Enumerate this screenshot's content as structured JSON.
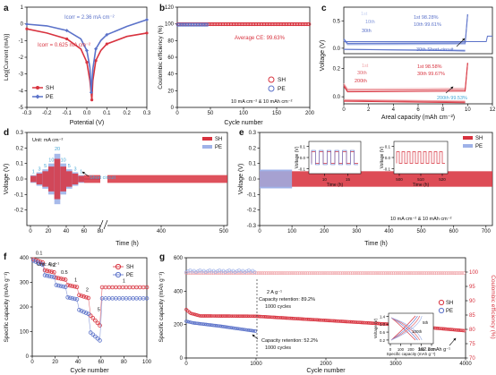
{
  "colors": {
    "sh": "#d8333f",
    "sh_light": "#ee9a9f",
    "pe": "#5b72c9",
    "pe_light": "#9fb2e8",
    "cyan": "#45a7d6",
    "axis": "#111111"
  },
  "chart_data": [
    {
      "panel": "a",
      "type": "line",
      "xlabel": "Potential (V)",
      "ylabel": "Log[Current (mA)]",
      "xlim": [
        -0.3,
        0.3
      ],
      "ylim": [
        -5,
        1
      ],
      "xticks": [
        "-0.3",
        "-0.2",
        "-0.1",
        "0.0",
        "0.1",
        "0.2",
        "0.3"
      ],
      "yticks": [
        "-5",
        "-4",
        "-3",
        "-2",
        "-1",
        "0",
        "1"
      ],
      "annotations": [
        "Icorr = 2.36 mA cm⁻²",
        "Icorr = 0.625 mA cm⁻²"
      ],
      "series": [
        {
          "name": "SH",
          "x": [
            -0.3,
            -0.2,
            -0.1,
            -0.03,
            0.0,
            0.015,
            0.025,
            0.03,
            0.045,
            0.07,
            0.1,
            0.2,
            0.3
          ],
          "y": [
            -0.3,
            -0.55,
            -0.9,
            -1.5,
            -2.3,
            -3.4,
            -4.55,
            -3.4,
            -2.2,
            -1.6,
            -1.2,
            -0.75,
            -0.55
          ]
        },
        {
          "name": "PE",
          "x": [
            -0.3,
            -0.2,
            -0.1,
            -0.03,
            0.0,
            0.015,
            0.022,
            0.03,
            0.045,
            0.07,
            0.1,
            0.2,
            0.3
          ],
          "y": [
            -0.02,
            -0.12,
            -0.4,
            -0.9,
            -1.6,
            -2.6,
            -4.1,
            -2.7,
            -1.5,
            -1.0,
            -0.65,
            -0.15,
            0.25
          ]
        }
      ]
    },
    {
      "panel": "b",
      "type": "scatter",
      "xlabel": "Cycle number",
      "ylabel": "Coulombic efficiency (%)",
      "xlim": [
        0,
        200
      ],
      "ylim": [
        0,
        120
      ],
      "xticks": [
        "0",
        "50",
        "100",
        "150",
        "200"
      ],
      "yticks": [
        "0",
        "20",
        "40",
        "60",
        "80",
        "100",
        "120"
      ],
      "annotations": [
        "Average CE: 99.63%",
        "10 mA cm⁻² & 10 mAh cm⁻²"
      ],
      "series": [
        {
          "name": "SH",
          "value": 99.6
        },
        {
          "name": "PE",
          "value": 99.0,
          "cycles_end": 45
        }
      ]
    },
    {
      "panel": "c",
      "type": "line",
      "xlabel": "Areal capacity (mAh cm⁻²)",
      "ylabel": "Voltage (V)",
      "xlim": [
        0,
        12
      ],
      "xticks": [
        "0",
        "2",
        "4",
        "6",
        "8",
        "10",
        "12"
      ],
      "yticks_top": [
        "0.0",
        "0.5"
      ],
      "yticks_bottom": [
        "0.0",
        "0.2"
      ],
      "annotations": [
        "1st",
        "10th",
        "30th",
        "1st 98.28%",
        "10th 99.61%",
        "30th Short-circuit",
        "1st 98.58%",
        "30th 99.67%",
        "200th 99.53%",
        "1st",
        "30th",
        "200th"
      ]
    },
    {
      "panel": "d",
      "type": "line",
      "xlabel": "Time (h)",
      "ylabel": "Voltage (V)",
      "ylim": [
        -0.3,
        0.3
      ],
      "yticks": [
        "-0.2",
        "-0.1",
        "0.0",
        "0.1",
        "0.2",
        "0.3"
      ],
      "xticks": [
        "0",
        "20",
        "40",
        "60",
        "80",
        "400",
        "500"
      ],
      "unit_label": "Unit: mA cm⁻²",
      "rate_labels": [
        "1",
        "3",
        "5",
        "10",
        "20",
        "10",
        "5",
        "3",
        "1"
      ],
      "annotations": [
        "Short circuit"
      ],
      "series": [
        {
          "name": "SH"
        },
        {
          "name": "PE"
        }
      ]
    },
    {
      "panel": "e",
      "type": "line",
      "xlabel": "Time (h)",
      "ylabel": "Voltage (V)",
      "xlim": [
        0,
        720
      ],
      "ylim": [
        -0.3,
        0.3
      ],
      "xticks": [
        "0",
        "100",
        "200",
        "300",
        "400",
        "500",
        "600",
        "700"
      ],
      "yticks": [
        "-0.3",
        "-0.2",
        "-0.1",
        "0.0",
        "0.1",
        "0.2",
        "0.3"
      ],
      "annotations": [
        "10 mA cm⁻² & 10 mAh cm⁻²"
      ],
      "inset1": {
        "xlabel": "Time (h)",
        "ylabel": "Voltage (V)",
        "xticks": [
          "10",
          "15"
        ],
        "yticks": [
          "-0.1",
          "0.0",
          "0.1"
        ]
      },
      "inset2": {
        "xlabel": "Time (h)",
        "ylabel": "Voltage (V)",
        "xticks": [
          "500",
          "510",
          "520"
        ],
        "yticks": [
          "-0.1",
          "0.0",
          "0.1"
        ]
      },
      "series": [
        {
          "name": "SH"
        },
        {
          "name": "PE"
        }
      ]
    },
    {
      "panel": "f",
      "type": "scatter",
      "xlabel": "Cycle number",
      "ylabel": "Specific capacity (mAh g⁻¹)",
      "xlim": [
        0,
        100
      ],
      "ylim": [
        0,
        400
      ],
      "xticks": [
        "0",
        "20",
        "40",
        "60",
        "80",
        "100"
      ],
      "yticks": [
        "0",
        "100",
        "200",
        "300",
        "400"
      ],
      "unit_label": "Unit: A g⁻¹",
      "rate_labels": [
        "0.1",
        "0.2",
        "0.5",
        "1",
        "2",
        "5",
        "1"
      ],
      "series": [
        {
          "name": "SH",
          "segments": [
            [
              0,
              10,
              395,
              380
            ],
            [
              10,
              20,
              350,
              340
            ],
            [
              20,
              30,
              320,
              310
            ],
            [
              30,
              40,
              290,
              280
            ],
            [
              40,
              50,
              250,
              235
            ],
            [
              50,
              60,
              170,
              120
            ],
            [
              60,
              100,
              280,
              280
            ]
          ]
        },
        {
          "name": "PE",
          "segments": [
            [
              0,
              10,
              390,
              370
            ],
            [
              10,
              20,
              330,
              320
            ],
            [
              20,
              30,
              290,
              280
            ],
            [
              30,
              40,
              240,
              230
            ],
            [
              40,
              50,
              190,
              170
            ],
            [
              50,
              60,
              100,
              60
            ],
            [
              60,
              100,
              235,
              235
            ]
          ]
        }
      ]
    },
    {
      "panel": "g",
      "type": "scatter",
      "xlabel": "Cycle number",
      "ylabel": "Specific capacity (mAh g⁻¹)",
      "ylabel_right": "Coulombic efficiency (%)",
      "xlim": [
        0,
        4000
      ],
      "ylim": [
        0,
        600
      ],
      "ylim_right": [
        70,
        105
      ],
      "xticks": [
        "0",
        "1000",
        "2000",
        "3000",
        "4000"
      ],
      "yticks": [
        "0",
        "200",
        "400",
        "600"
      ],
      "yticks_right": [
        "70",
        "75",
        "80",
        "85",
        "90",
        "95",
        "100"
      ],
      "annotations": [
        "2 A g⁻¹",
        "Capacity retention: 89.2%",
        "1000 cycles",
        "Capacity retention: 52.2%",
        "1000 cycles",
        "162.8 mAh g⁻¹"
      ],
      "inset": {
        "xlabel": "Specific capacity (mAh g⁻¹)",
        "ylabel": "Voltage (V)",
        "xticks": [
          "0",
          "100",
          "200",
          "300",
          "400"
        ],
        "yticks": [
          "0.2",
          "0.6",
          "1.0",
          "1.4"
        ],
        "labels": [
          "5th",
          "100th"
        ]
      },
      "series": [
        {
          "name": "SH",
          "capacity": [
            [
              0,
              290
            ],
            [
              60,
              268
            ],
            [
              200,
              252
            ],
            [
              1000,
              250
            ],
            [
              2000,
              225
            ],
            [
              3000,
              200
            ],
            [
              4000,
              162.8
            ]
          ]
        },
        {
          "name": "PE",
          "capacity": [
            [
              0,
              220
            ],
            [
              100,
              210
            ],
            [
              500,
              190
            ],
            [
              1000,
              160
            ]
          ]
        }
      ]
    }
  ]
}
